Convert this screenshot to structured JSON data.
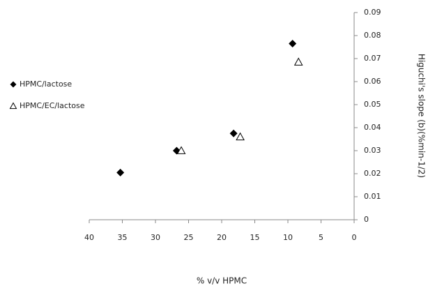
{
  "chart_data": {
    "type": "scatter",
    "x_label": "% v/v  HPMC",
    "y_label": "Higuchi's slope (b)(%min-1/2)",
    "xlim": [
      40,
      0
    ],
    "xticks": [
      40,
      35,
      30,
      25,
      20,
      15,
      10,
      5,
      0
    ],
    "ylim": [
      0,
      0.09
    ],
    "yticks": [
      0,
      0.01,
      0.02,
      0.03,
      0.04,
      0.05,
      0.06,
      0.07,
      0.08,
      0.09
    ],
    "y_axis_side": "right",
    "legend": "left",
    "grid": false,
    "series": [
      {
        "name": "HPMC/lactose",
        "color": "#000000",
        "marker": "diamond",
        "x": [
          35.3,
          26.8,
          18.2,
          9.3
        ],
        "values": [
          0.0205,
          0.03,
          0.0375,
          0.0765
        ]
      },
      {
        "name": "HPMC/EC/lactose",
        "color": "#000000",
        "marker": "triangle",
        "x": [
          26.1,
          17.2,
          8.4
        ],
        "values": [
          0.03,
          0.036,
          0.0685
        ]
      }
    ]
  }
}
